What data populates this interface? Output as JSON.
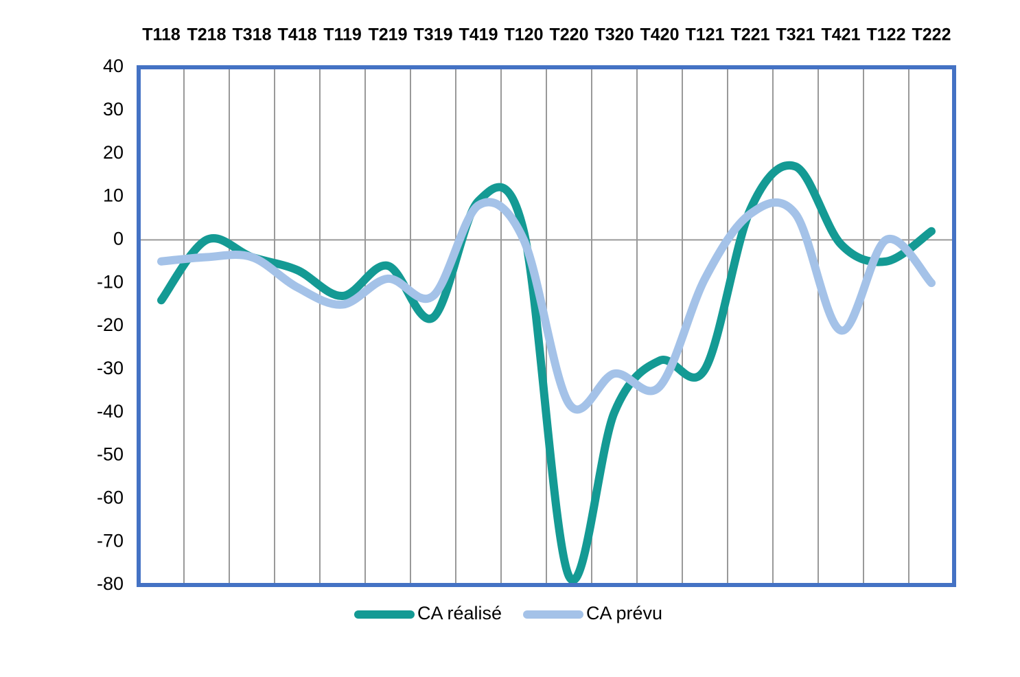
{
  "chart_data": {
    "type": "line",
    "categories": [
      "T118",
      "T218",
      "T318",
      "T418",
      "T119",
      "T219",
      "T319",
      "T419",
      "T120",
      "T220",
      "T320",
      "T420",
      "T121",
      "T221",
      "T321",
      "T421",
      "T122",
      "T222"
    ],
    "series": [
      {
        "name": "CA réalisé",
        "color": "#149a94",
        "values": [
          -14,
          0,
          -4,
          -7,
          -13,
          -6,
          -18,
          9,
          2,
          -78,
          -40,
          -28,
          -30,
          7,
          17,
          -1,
          -5,
          2
        ]
      },
      {
        "name": "CA prévu",
        "color": "#a4c2e8",
        "values": [
          -5,
          -4,
          -4,
          -11,
          -15,
          -9,
          -13,
          8,
          0,
          -38,
          -31,
          -34,
          -9,
          6,
          6,
          -21,
          0,
          -10
        ]
      }
    ],
    "ylim": [
      -80,
      40
    ],
    "yticks": [
      -80,
      -70,
      -60,
      -50,
      -40,
      -30,
      -20,
      -10,
      0,
      10,
      20,
      30,
      40
    ],
    "grid": true,
    "frame_color": "#4472c4",
    "legend": "bottom"
  }
}
